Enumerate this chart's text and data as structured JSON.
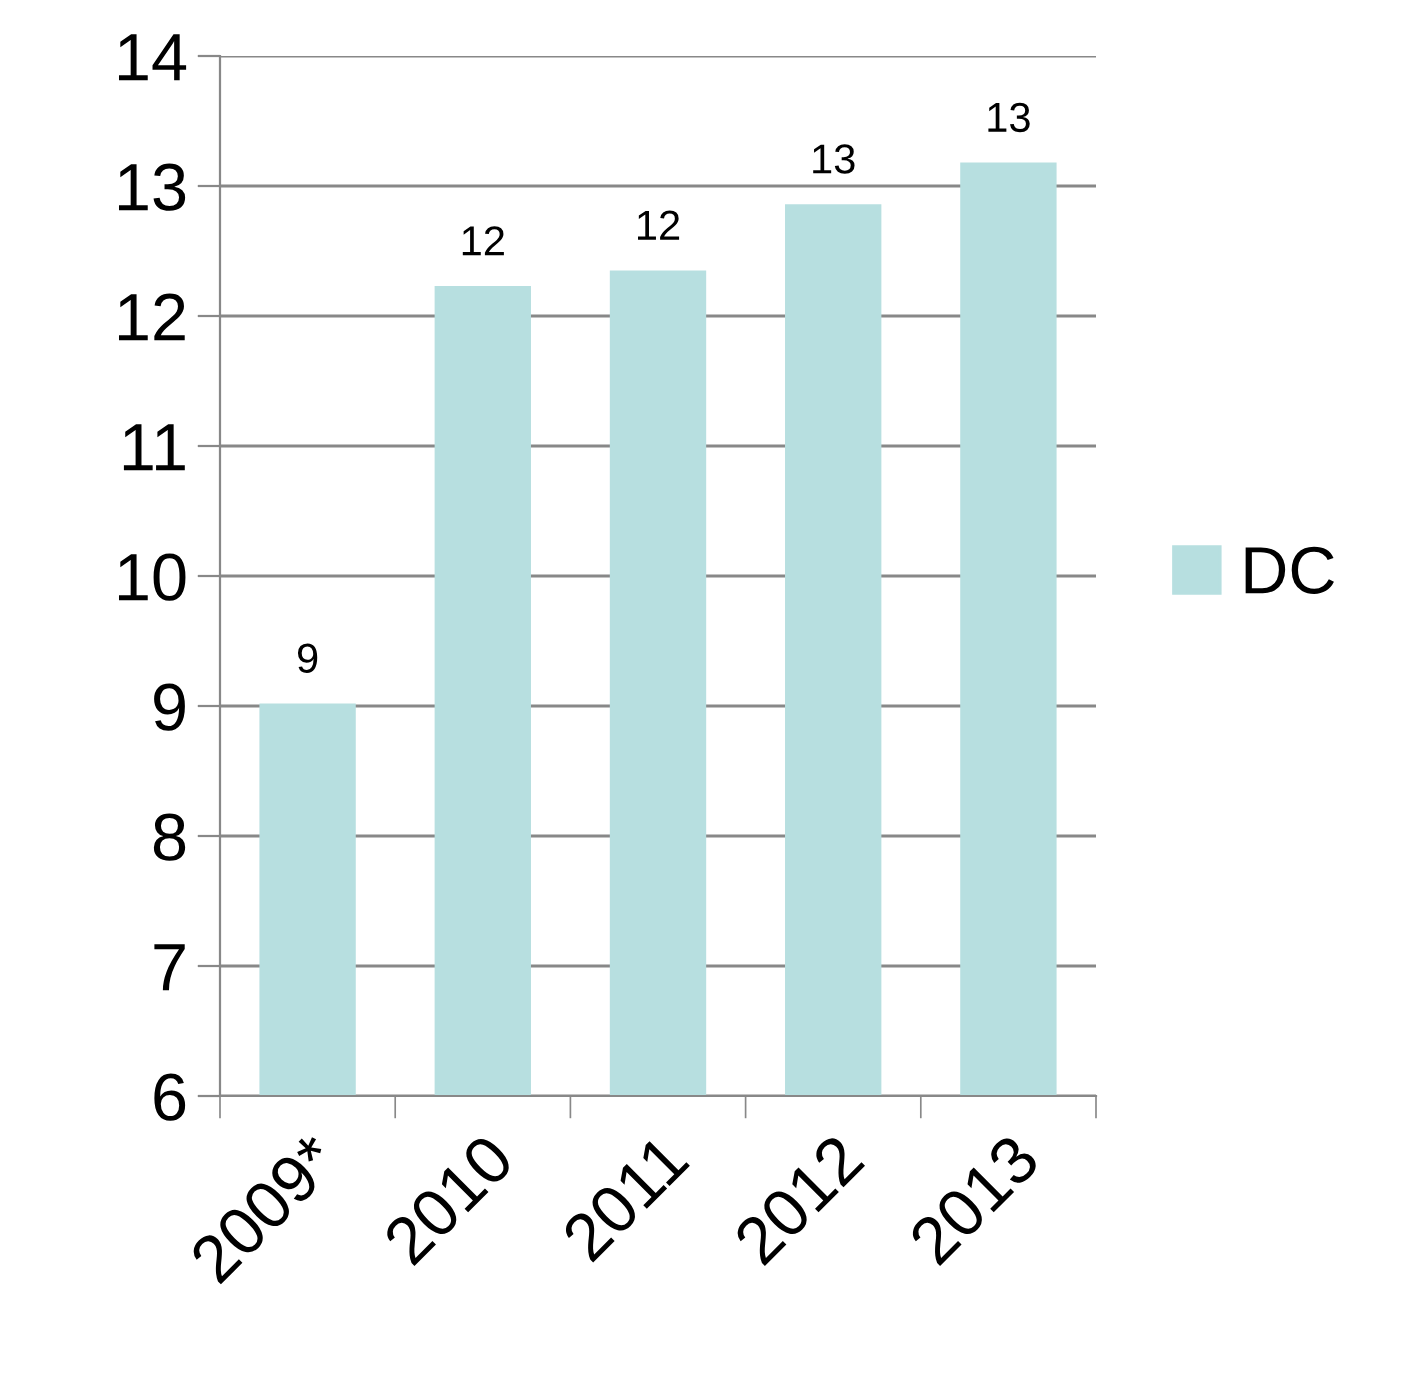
{
  "chart_data": {
    "type": "bar",
    "categories": [
      "2009*",
      "2010",
      "2011",
      "2012",
      "2013"
    ],
    "series": [
      {
        "name": "DC",
        "color": "#b7dfe0",
        "values": [
          9.02,
          12.23,
          12.35,
          12.86,
          13.18
        ],
        "value_labels": [
          "9",
          "12",
          "12",
          "13",
          "13"
        ]
      }
    ],
    "ylim": [
      6,
      14
    ],
    "yticks": [
      6,
      7,
      8,
      9,
      10,
      11,
      12,
      13,
      14
    ],
    "grid": "y",
    "legend": "right"
  }
}
